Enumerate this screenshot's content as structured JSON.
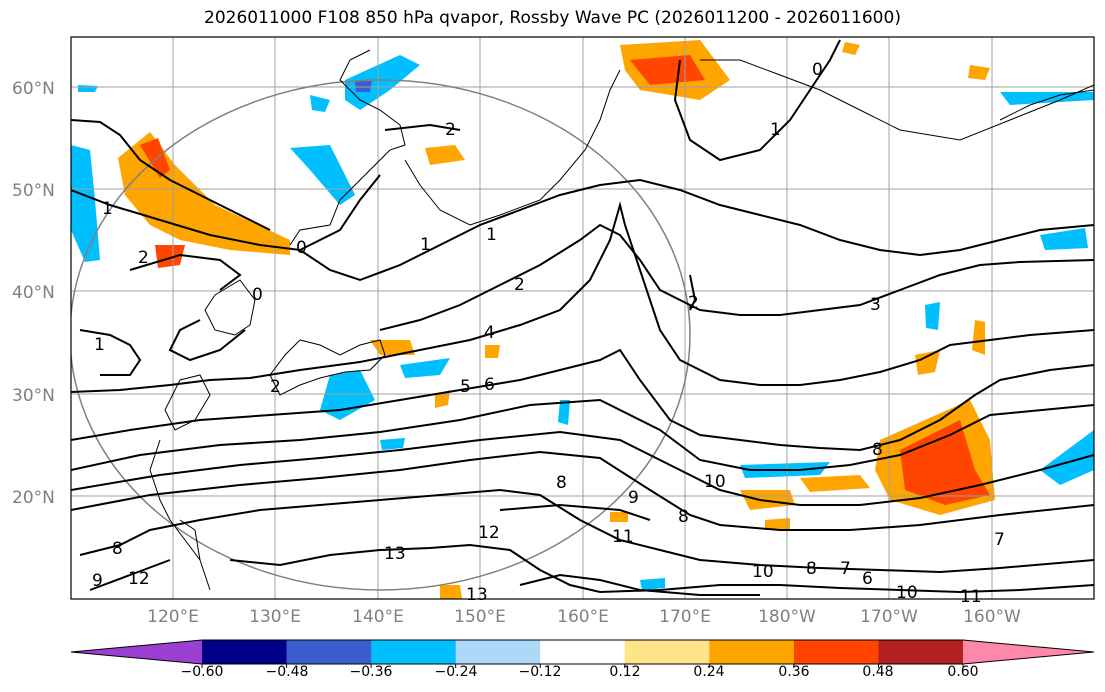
{
  "title": "2026011000 F108 850 hPa qvapor, Rossby Wave PC (2026011200 - 2026011600)",
  "lon_labels": [
    "120°E",
    "130°E",
    "140°E",
    "150°E",
    "160°E",
    "170°E",
    "180°W",
    "170°W",
    "160°W"
  ],
  "lat_labels": [
    "60°N",
    "50°N",
    "40°N",
    "30°N",
    "20°N"
  ],
  "colorbar": {
    "ticks": [
      "−0.60",
      "−0.48",
      "−0.36",
      "−0.24",
      "−0.12",
      "0.12",
      "0.24",
      "0.36",
      "0.48",
      "0.60"
    ],
    "colors": [
      "#9b3fd0",
      "#00008b",
      "#3a5fcd",
      "#00bfff",
      "#add8f7",
      "#ffffff",
      "#ffe48a",
      "#ffa500",
      "#ff4500",
      "#b22222",
      "#ff88aa"
    ]
  },
  "contour_labels": [
    "0",
    "1",
    "1",
    "2",
    "2",
    "0",
    "1",
    "1",
    "2",
    "2",
    "3",
    "4",
    "5",
    "6",
    "0",
    "1",
    "2",
    "8",
    "9",
    "10",
    "8",
    "11",
    "12",
    "13",
    "12",
    "9",
    "8",
    "10",
    "8",
    "7",
    "6",
    "10",
    "11",
    "7",
    "13",
    "8"
  ]
}
